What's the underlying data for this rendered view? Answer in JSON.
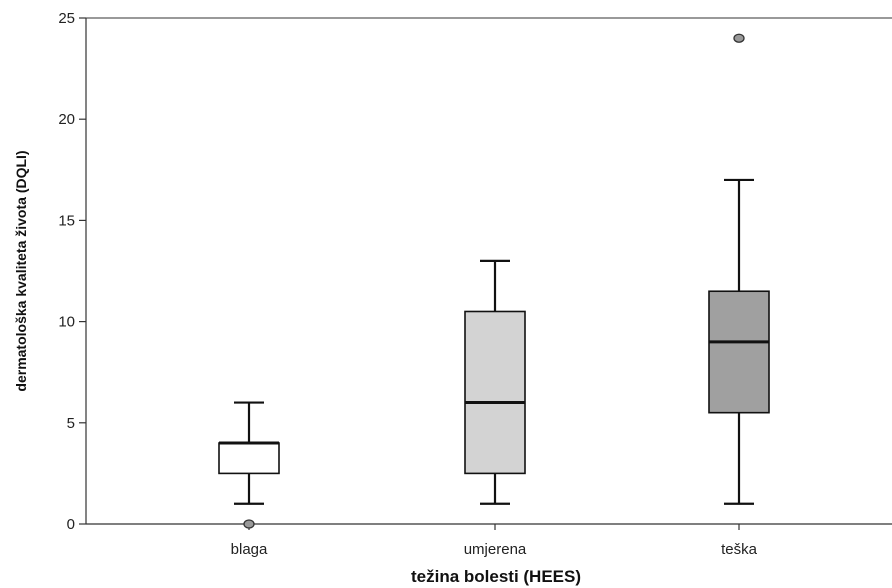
{
  "chart_data": {
    "type": "box",
    "title": "",
    "xlabel": "težina bolesti (HEES)",
    "ylabel": "dermatološka kvaliteta života (DQLI)",
    "ylim": [
      0,
      25
    ],
    "yticks": [
      "0",
      "5",
      "10",
      "15",
      "20",
      "25"
    ],
    "grid": false,
    "categories": [
      "blaga",
      "umjerena",
      "teška"
    ],
    "boxes": [
      {
        "category": "blaga",
        "whisker_low": 1,
        "q1": 2.5,
        "median": 4,
        "q3": 4,
        "whisker_high": 6,
        "outliers": [
          0
        ],
        "fill": "#ffffff"
      },
      {
        "category": "umjerena",
        "whisker_low": 1,
        "q1": 2.5,
        "median": 6,
        "q3": 10.5,
        "whisker_high": 13,
        "outliers": [],
        "fill": "#d3d3d3"
      },
      {
        "category": "teška",
        "whisker_low": 1,
        "q1": 5.5,
        "median": 9,
        "q3": 11.5,
        "whisker_high": 17,
        "outliers": [
          24
        ],
        "fill": "#a0a0a0"
      }
    ]
  }
}
